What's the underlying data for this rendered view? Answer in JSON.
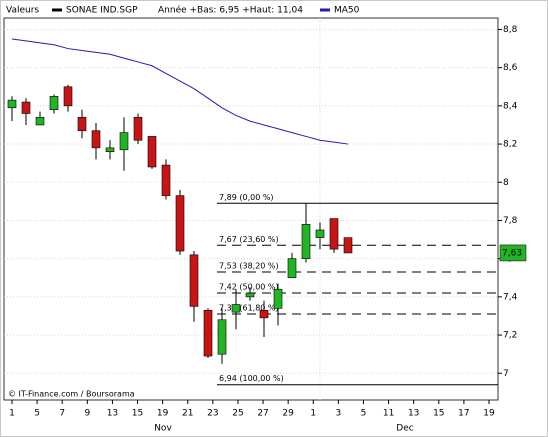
{
  "chart_data": {
    "type": "candlestick",
    "title": "Valeurs",
    "subtitle": "Année +Bas: 6,95 +Haut: 11,04",
    "series": [
      {
        "name": "SONAE IND.SGP",
        "color": "#000000",
        "up_color": "#22b422",
        "down_color": "#c81414",
        "open": [
          8.39,
          8.42,
          8.3,
          8.38,
          8.5,
          8.34,
          8.27,
          8.16,
          8.17,
          8.34,
          8.24,
          8.09,
          7.93,
          7.62,
          7.33,
          7.1,
          7.32,
          7.4,
          7.33,
          7.34,
          7.5,
          7.6,
          7.71,
          7.81,
          7.71
        ],
        "high": [
          8.45,
          8.44,
          8.37,
          8.46,
          8.51,
          8.38,
          8.31,
          8.22,
          8.34,
          8.36,
          8.24,
          8.12,
          7.96,
          7.64,
          7.34,
          7.34,
          7.44,
          7.45,
          7.38,
          7.47,
          7.63,
          7.89,
          7.79,
          7.81,
          7.71
        ],
        "low": [
          8.32,
          8.3,
          8.3,
          8.36,
          8.37,
          8.23,
          8.12,
          8.12,
          8.06,
          8.2,
          8.07,
          7.91,
          7.62,
          7.27,
          7.08,
          7.05,
          7.23,
          7.38,
          7.19,
          7.25,
          7.5,
          7.58,
          7.65,
          7.63,
          7.63
        ],
        "close": [
          8.43,
          8.36,
          8.34,
          8.45,
          8.4,
          8.27,
          8.18,
          8.18,
          8.26,
          8.22,
          8.08,
          7.93,
          7.64,
          7.35,
          7.09,
          7.28,
          7.36,
          7.42,
          7.29,
          7.44,
          7.6,
          7.78,
          7.75,
          7.65,
          7.63
        ]
      },
      {
        "name": "MA50",
        "color": "#1e1eb4",
        "values": [
          8.75,
          8.74,
          8.73,
          8.72,
          8.7,
          8.69,
          8.68,
          8.67,
          8.65,
          8.63,
          8.61,
          8.57,
          8.53,
          8.49,
          8.44,
          8.39,
          8.35,
          8.32,
          8.3,
          8.28,
          8.26,
          8.24,
          8.22,
          8.21,
          8.2
        ]
      }
    ],
    "ylim": [
      6.86,
      8.86
    ],
    "yticks": [
      {
        "value": 7,
        "label": "7"
      },
      {
        "value": 7.2,
        "label": "7,2"
      },
      {
        "value": 7.4,
        "label": "7,4"
      },
      {
        "value": 7.6,
        "label": "7,6"
      },
      {
        "value": 7.8,
        "label": "7,8"
      },
      {
        "value": 8,
        "label": "8"
      },
      {
        "value": 8.2,
        "label": "8,2"
      },
      {
        "value": 8.4,
        "label": "8,4"
      },
      {
        "value": 8.6,
        "label": "8,6"
      },
      {
        "value": 8.8,
        "label": "8,8"
      }
    ],
    "grid": true,
    "x_tick_labels": [
      "1",
      "5",
      "7",
      "9",
      "13",
      "15",
      "19",
      "21",
      "23",
      "25",
      "27",
      "29",
      "1",
      "3",
      "5",
      "11",
      "13",
      "15",
      "17",
      "19"
    ],
    "month_labels": [
      "Nov",
      "Dec"
    ],
    "fibonacci_levels": [
      {
        "value": 7.89,
        "label": "7,89 (0,00 %)"
      },
      {
        "value": 7.67,
        "label": "7,67 (23,60 %)"
      },
      {
        "value": 7.53,
        "label": "7,53 (38,20 %)"
      },
      {
        "value": 7.42,
        "label": "7,42 (50,00 %)"
      },
      {
        "value": 7.31,
        "label": "7,31 (61,80 %)"
      },
      {
        "value": 6.94,
        "label": "6,94 (100,00 %)"
      }
    ],
    "last_price": {
      "value": 7.63,
      "label": "7,63"
    },
    "source": "© IT-Finance.com / Boursorama"
  }
}
